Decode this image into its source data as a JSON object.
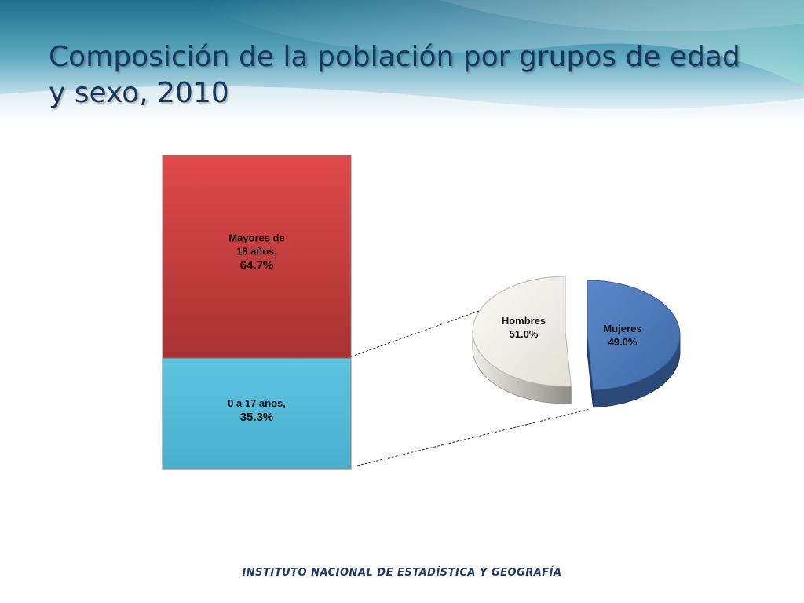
{
  "slide": {
    "title": "Composición de la población por grupos de edad y sexo, 2010",
    "footer": "INSTITUTO NACIONAL  DE ESTADÍSTICA Y GEOGRAFÍA"
  },
  "colors": {
    "adults": "#d94541",
    "minors": "#55b9d6",
    "hombres": "#eeece6",
    "mujeres": "#4f7dbf",
    "title": "#17375e",
    "header_teal": "#3b8ea6"
  },
  "chart_data": [
    {
      "type": "bar",
      "stacked": true,
      "categories": [
        ""
      ],
      "series": [
        {
          "name": "0 a 17 años,",
          "values": [
            35.3
          ],
          "label_lines": [
            "0 a 17 años,"
          ],
          "value_label": "35.3%"
        },
        {
          "name": "Mayores de 18 años,",
          "values": [
            64.7
          ],
          "label_lines": [
            "Mayores de",
            "18 años,"
          ],
          "value_label": "64.7%"
        }
      ],
      "ylim": [
        0,
        100
      ]
    },
    {
      "type": "pie",
      "labels": [
        "Hombres",
        "Mujeres"
      ],
      "values": [
        51.0,
        49.0
      ],
      "value_labels": [
        "51.0%",
        "49.0%"
      ],
      "exploded": true
    }
  ]
}
